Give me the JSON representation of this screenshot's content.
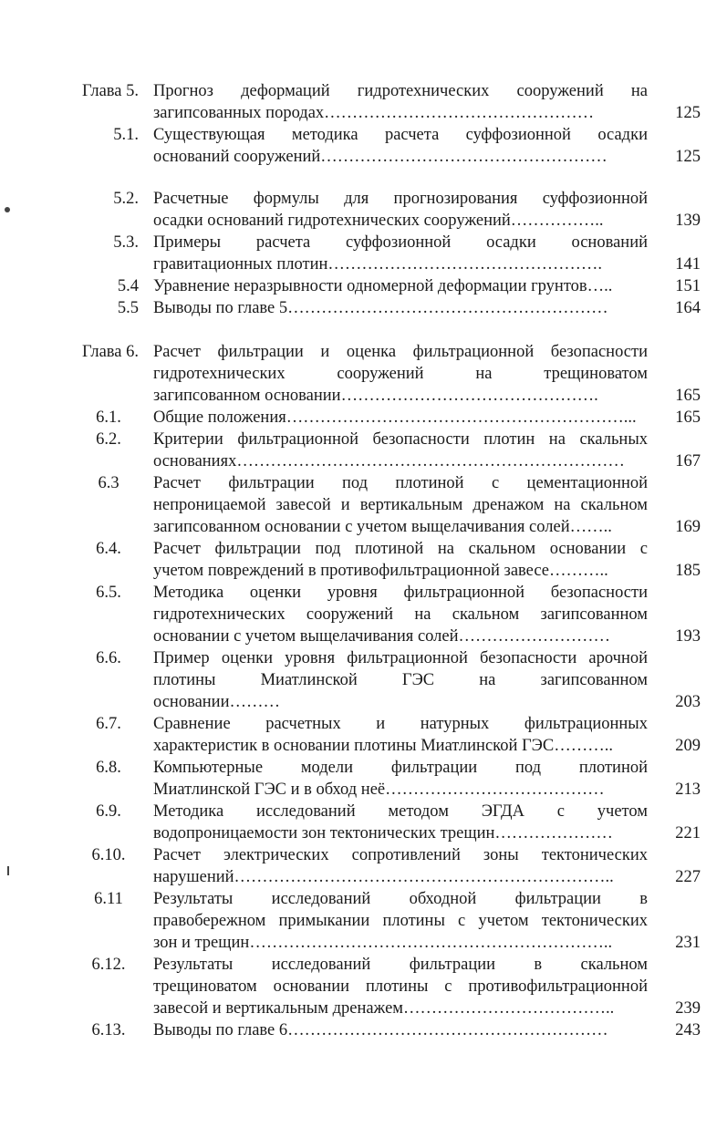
{
  "chapters": [
    {
      "entries": [
        {
          "num": "Глава 5.",
          "align": "right",
          "lines": [
            "Прогноз деформаций гидротехнических сооружений на",
            "загипсованных породах…………………………………………"
          ],
          "page": "125"
        },
        {
          "num": "5.1.",
          "align": "right",
          "lines": [
            "Существующая методика расчета суффозионной осадки",
            "оснований сооружений……………………………………………"
          ],
          "page": "125",
          "gap_after": "small"
        },
        {
          "num": "5.2.",
          "align": "right",
          "lines": [
            "Расчетные формулы для прогнозирования суффозионной",
            "осадки оснований гидротехнических сооружений…………….."
          ],
          "page": "139"
        },
        {
          "num": "5.3.",
          "align": "right",
          "lines": [
            "Примеры расчета суффозионной осадки оснований",
            "гравитационных плотин…………………………………………."
          ],
          "page": "141"
        },
        {
          "num": "5.4",
          "align": "right",
          "lines": [
            "Уравнение неразрывности одномерной деформации грунтов….."
          ],
          "page": "151"
        },
        {
          "num": "5.5",
          "align": "right",
          "lines": [
            "Выводы по главе 5…………………………………………………"
          ],
          "page": "164"
        }
      ]
    },
    {
      "entries": [
        {
          "num": "Глава 6.",
          "align": "right",
          "lines": [
            "Расчет фильтрации и оценка фильтрационной безопасности",
            "гидротехнических сооружений на трещиноватом",
            "загипсованном основании………………………………………."
          ],
          "page": "165"
        },
        {
          "num": "6.1.",
          "align": "center",
          "lines": [
            "Общие положения……………………………………………………..."
          ],
          "page": "165"
        },
        {
          "num": "6.2.",
          "align": "center",
          "lines": [
            "Критерии фильтрационной безопасности плотин на скальных",
            "основаниях……………………………………………………………"
          ],
          "page": "167"
        },
        {
          "num": "6.3",
          "align": "center",
          "lines": [
            "Расчет фильтрации под плотиной с цементационной",
            "непроницаемой завесой и вертикальным дренажом на скальном",
            "загипсованном основании с учетом выщелачивания солей…….."
          ],
          "page": "169"
        },
        {
          "num": "6.4.",
          "align": "center",
          "lines": [
            "Расчет фильтрации под плотиной на скальном основании с",
            "учетом повреждений в противофильтрационной завесе……….."
          ],
          "page": "185"
        },
        {
          "num": "6.5.",
          "align": "center",
          "lines": [
            "Методика оценки уровня фильтрационной безопасности",
            "гидротехнических сооружений на скальном загипсованном",
            "основании с учетом выщелачивания солей………………………"
          ],
          "page": "193"
        },
        {
          "num": "6.6.",
          "align": "center",
          "lines": [
            "Пример оценки уровня фильтрационной безопасности арочной",
            "плотины Миатлинской ГЭС на загипсованном",
            "основании………"
          ],
          "page": "203"
        },
        {
          "num": "6.7.",
          "align": "center",
          "lines": [
            "Сравнение расчетных и натурных фильтрационных",
            "характеристик в основании плотины Миатлинской ГЭС……….."
          ],
          "page": "209"
        },
        {
          "num": "6.8.",
          "align": "center",
          "lines": [
            "Компьютерные модели фильтрации под плотиной",
            "Миатлинской ГЭС и в обход неё…………………………………"
          ],
          "page": "213"
        },
        {
          "num": "6.9.",
          "align": "center",
          "lines": [
            "Методика исследований методом ЭГДА с учетом",
            "водопроницаемости зон тектонических трещин…………………"
          ],
          "page": "221"
        },
        {
          "num": "6.10.",
          "align": "center",
          "lines": [
            "Расчет электрических сопротивлений зоны тектонических",
            "нарушений………………………………………………………….."
          ],
          "page": "227"
        },
        {
          "num": "6.11",
          "align": "center",
          "lines": [
            "Результаты исследований обходной фильтрации в",
            "правобережном примыкании плотины с учетом тектонических",
            "зон и трещин……………………………………………………….."
          ],
          "page": "231"
        },
        {
          "num": "6.12.",
          "align": "center",
          "lines": [
            "Результаты исследований фильтрации в скальном",
            "трещиноватом основании плотины с противофильтрационной",
            "завесой и вертикальным дренажем……………………………….."
          ],
          "page": "239"
        },
        {
          "num": "6.13.",
          "align": "center",
          "lines": [
            "Выводы по главе 6…………………………………………………"
          ],
          "page": "243"
        }
      ]
    }
  ]
}
